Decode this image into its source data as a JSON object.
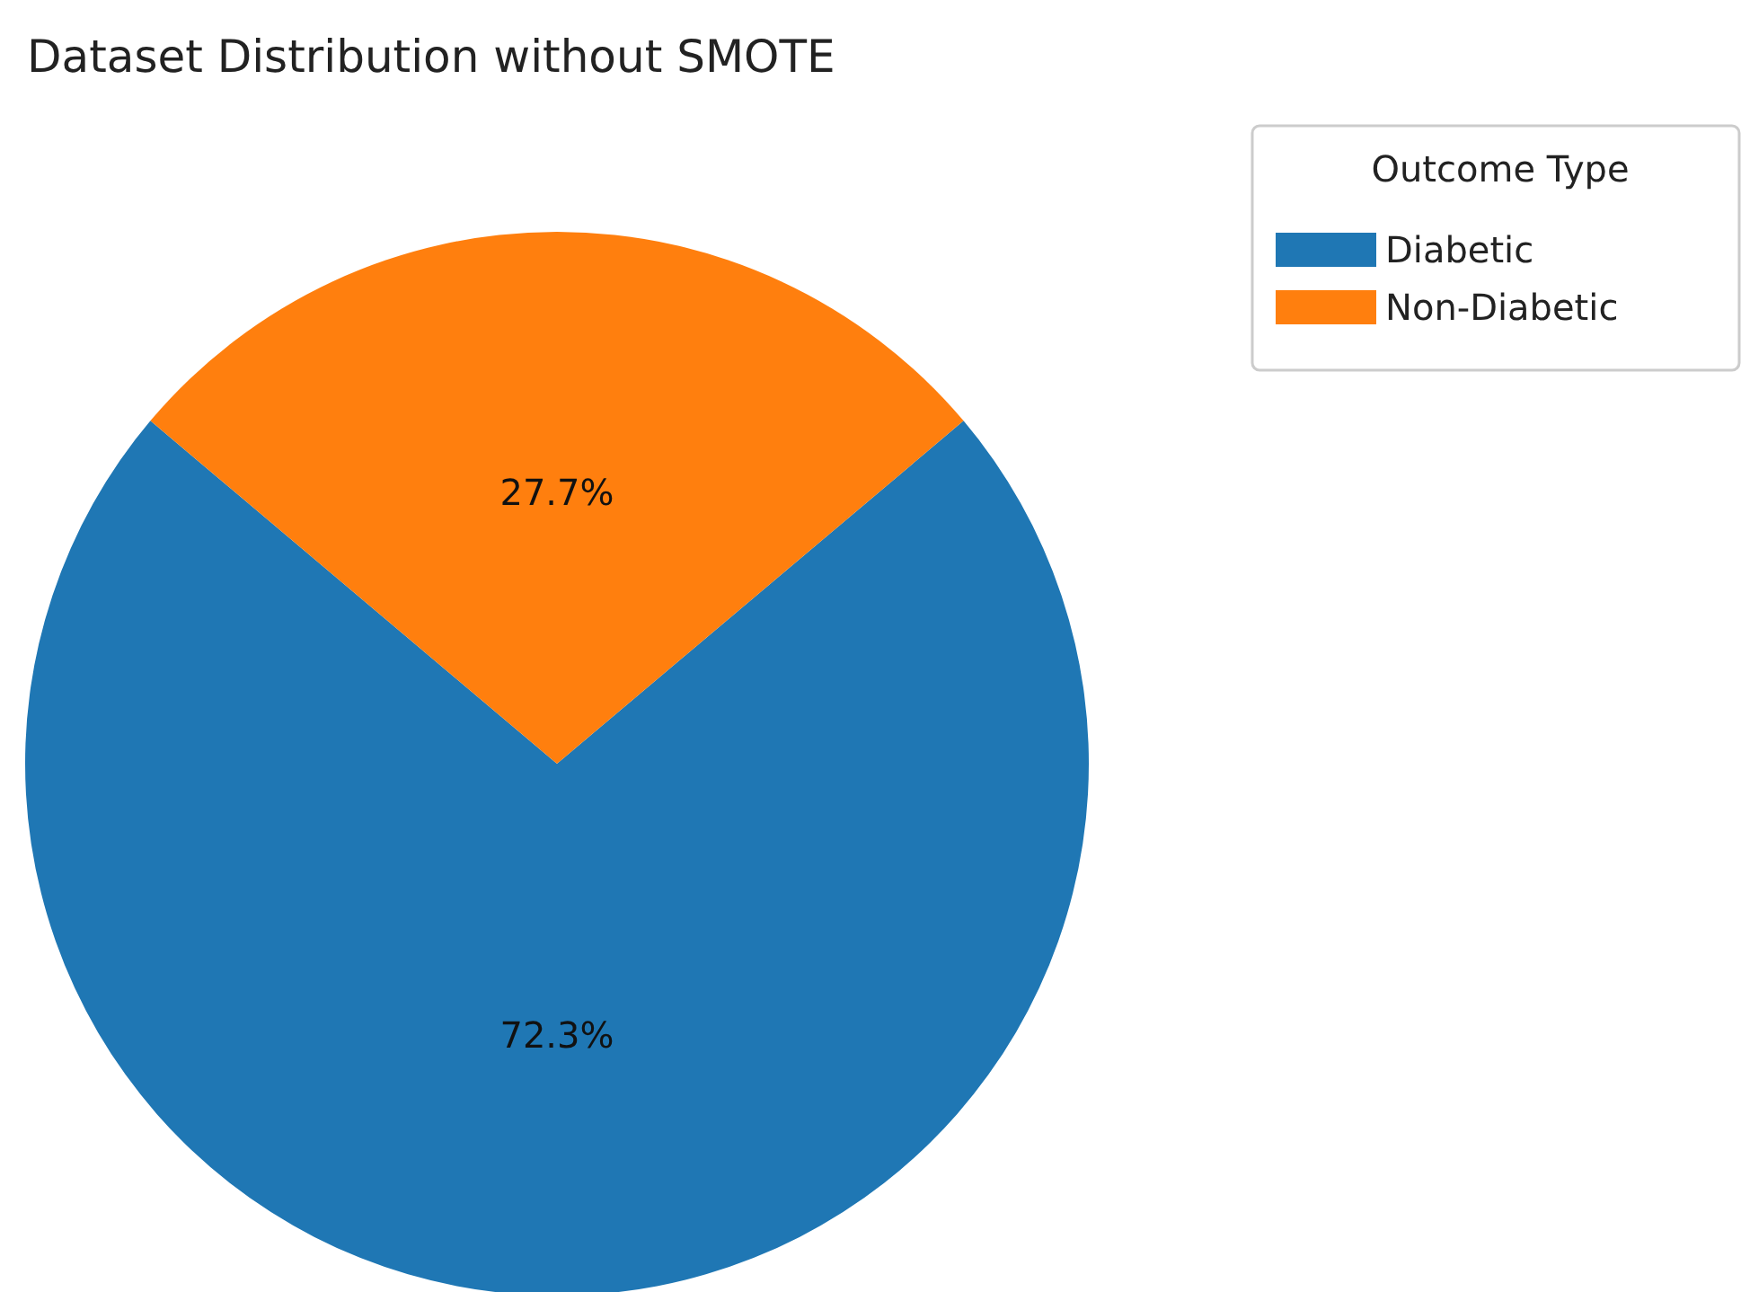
{
  "chart_data": {
    "type": "pie",
    "title": "Dataset Distribution without SMOTE",
    "legend_title": "Outcome Type",
    "legend": "top right",
    "categories": [
      "Diabetic",
      "Non-Diabetic"
    ],
    "values": [
      72.3,
      27.7
    ],
    "colors": [
      "#1f77b4",
      "#ff7f0e"
    ],
    "value_labels": [
      "72.3%",
      "27.7%"
    ]
  }
}
